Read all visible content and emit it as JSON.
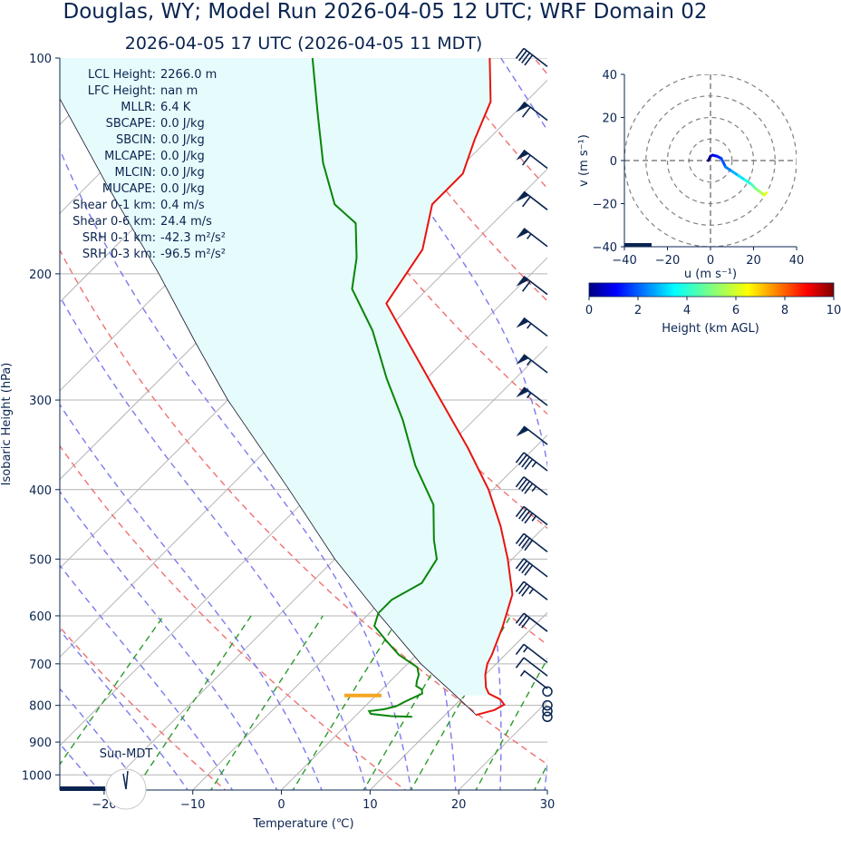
{
  "title_main": "Douglas, WY; Model Run 2026-04-05 12 UTC; WRF Domain 02",
  "title_sub": "2026-04-05 17 UTC  (2026-04-05 11 MDT)",
  "stats": [
    {
      "label": "LCL Height:",
      "value": "2266.0 m"
    },
    {
      "label": "LFC Height:",
      "value": "nan m"
    },
    {
      "label": "MLLR:",
      "value": "6.4 K"
    },
    {
      "label": "SBCAPE:",
      "value": "0.0 J/kg"
    },
    {
      "label": "SBCIN:",
      "value": "0.0 J/kg"
    },
    {
      "label": "MLCAPE:",
      "value": "0.0 J/kg"
    },
    {
      "label": "MLCIN:",
      "value": "0.0 J/kg"
    },
    {
      "label": "MUCAPE:",
      "value": "0.0 J/kg"
    },
    {
      "label": "Shear 0-1 km:",
      "value": "0.4 m/s"
    },
    {
      "label": "Shear 0-6 km:",
      "value": "24.4 m/s"
    },
    {
      "label": "SRH 0-1 km:",
      "value": "-42.3 m²/s²"
    },
    {
      "label": "SRH 0-3 km:",
      "value": "-96.5 m²/s²"
    }
  ],
  "sun_label": "Sun-MDT",
  "chart_data": [
    {
      "type": "line",
      "subtype": "skew-T log-p sounding",
      "xlabel": "Temperature (℃)",
      "ylabel": "Isobaric Height (hPa)",
      "xlim": [
        -25,
        30
      ],
      "ylim": [
        1050,
        100
      ],
      "y_scale": "log",
      "x_ticks": [
        "−20",
        "−10",
        "0",
        "10",
        "20",
        "30"
      ],
      "y_ticks": [
        "100",
        "200",
        "300",
        "400",
        "500",
        "600",
        "700",
        "800",
        "900",
        "1000"
      ],
      "lcl_pressure": 775,
      "temperature": {
        "color": "#e8140f",
        "p": [
          825,
          812,
          798,
          785,
          770,
          755,
          725,
          700,
          680,
          620,
          560,
          500,
          450,
          400,
          350,
          300,
          250,
          220,
          185,
          160,
          145,
          130,
          115,
          100
        ],
        "t": [
          13.5,
          15.0,
          15.5,
          14.5,
          12.5,
          11.5,
          10.0,
          9.0,
          8.5,
          6.5,
          4.0,
          -0.5,
          -5.0,
          -10.5,
          -17.5,
          -26.0,
          -36.0,
          -43.0,
          -45.0,
          -49.0,
          -49.0,
          -51.5,
          -54.0,
          -59.0
        ]
      },
      "dewpoint": {
        "color": "#088508",
        "p": [
          830,
          828,
          822,
          815,
          810,
          802,
          790,
          780,
          770,
          760,
          752,
          740,
          725,
          708,
          680,
          650,
          620,
          595,
          570,
          540,
          500,
          470,
          420,
          370,
          320,
          280,
          240,
          210,
          190,
          170,
          160,
          140,
          120,
          100
        ],
        "t": [
          6.5,
          4.0,
          1.5,
          1.0,
          2.5,
          3.5,
          4.0,
          4.5,
          5.0,
          4.5,
          3.5,
          3.0,
          2.5,
          1.5,
          -2.0,
          -5.0,
          -8.0,
          -9.0,
          -9.0,
          -7.5,
          -8.5,
          -11.0,
          -15.0,
          -21.5,
          -28.0,
          -34.5,
          -41.5,
          -48.5,
          -51.5,
          -55.5,
          -60.0,
          -66.0,
          -72.0,
          -79.0
        ]
      },
      "parcel": {
        "color": "#14142a",
        "p": [
          825,
          775,
          700,
          600,
          500,
          400,
          300,
          250,
          200,
          150,
          100
        ],
        "t": [
          13.5,
          9.0,
          1.5,
          -8.5,
          -20.0,
          -33.0,
          -50.0,
          -60.0,
          -72.0,
          -88.0,
          -110.0
        ]
      },
      "wind_barbs": [
        {
          "p": 830,
          "speed_kt": 0
        },
        {
          "p": 815,
          "speed_kt": 0
        },
        {
          "p": 800,
          "speed_kt": 0
        },
        {
          "p": 765,
          "speed_kt": 0
        },
        {
          "p": 745,
          "speed_kt": 5
        },
        {
          "p": 715,
          "speed_kt": 10
        },
        {
          "p": 685,
          "speed_kt": 15
        },
        {
          "p": 620,
          "speed_kt": 30
        },
        {
          "p": 560,
          "speed_kt": 35
        },
        {
          "p": 520,
          "speed_kt": 40
        },
        {
          "p": 480,
          "speed_kt": 40
        },
        {
          "p": 440,
          "speed_kt": 45
        },
        {
          "p": 400,
          "speed_kt": 45
        },
        {
          "p": 370,
          "speed_kt": 45
        },
        {
          "p": 340,
          "speed_kt": 50
        },
        {
          "p": 300,
          "speed_kt": 55
        },
        {
          "p": 270,
          "speed_kt": 55
        },
        {
          "p": 240,
          "speed_kt": 55
        },
        {
          "p": 210,
          "speed_kt": 60
        },
        {
          "p": 180,
          "speed_kt": 55
        },
        {
          "p": 160,
          "speed_kt": 60
        },
        {
          "p": 140,
          "speed_kt": 60
        },
        {
          "p": 120,
          "speed_kt": 60
        },
        {
          "p": 101,
          "speed_kt": 40
        }
      ]
    },
    {
      "type": "line",
      "subtype": "hodograph",
      "xlabel": "u (m s⁻¹)",
      "ylabel": "v (m s⁻¹)",
      "xlim": [
        -40,
        40
      ],
      "ylim": [
        -40,
        40
      ],
      "ticks": [
        "−40",
        "−20",
        "0",
        "20",
        "40"
      ],
      "ring_speeds": [
        10,
        20,
        30,
        40
      ],
      "u": [
        -1,
        0,
        1,
        3,
        5,
        7,
        10,
        13,
        16,
        19,
        21,
        23,
        25,
        26
      ],
      "v": [
        0,
        2,
        2.5,
        2,
        1,
        -3,
        -5,
        -7,
        -9,
        -11,
        -13,
        -14.5,
        -16,
        -15
      ],
      "height_km": [
        0,
        0.5,
        1,
        1.5,
        2,
        2.5,
        3,
        3.5,
        4,
        4.5,
        5,
        5.5,
        6,
        6.5
      ]
    },
    {
      "type": "colorbar",
      "label": "Height (km AGL)",
      "range": [
        0,
        10
      ],
      "ticks": [
        "0",
        "2",
        "4",
        "6",
        "8",
        "10"
      ],
      "colormap": "jet"
    }
  ]
}
